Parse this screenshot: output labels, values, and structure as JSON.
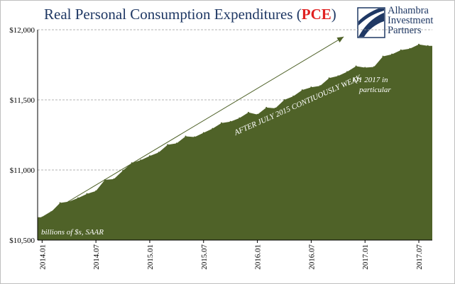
{
  "title": {
    "main": "Real Personal Consumption Expenditures (",
    "highlight": "PCE",
    "close": ")"
  },
  "logo": {
    "line1": "Alhambra",
    "line2": "Investment",
    "line3": "Partners"
  },
  "colors": {
    "area": "#4f6228",
    "title": "#1f3864",
    "highlight": "#e02020"
  },
  "chart_data": {
    "type": "area",
    "title": "Real Personal Consumption Expenditures (PCE)",
    "units_note": "billions of $s, SAAR",
    "ylim": [
      10500,
      12000
    ],
    "yticks": [
      10500,
      11000,
      11500,
      12000
    ],
    "ytick_labels": [
      "$10,500",
      "$11,000",
      "$11,500",
      "$12,000"
    ],
    "grid": "horizontal dashed",
    "xtick_labels": [
      "2014.01",
      "2014.07",
      "2015.01",
      "2015.07",
      "2016.01",
      "2016.07",
      "2017.01",
      "2017.07"
    ],
    "xtick_month_index": [
      0,
      6,
      12,
      18,
      24,
      30,
      36,
      42
    ],
    "x": [
      "2014.01",
      "2014.02",
      "2014.03",
      "2014.04",
      "2014.05",
      "2014.06",
      "2014.07",
      "2014.08",
      "2014.09",
      "2014.10",
      "2014.11",
      "2014.12",
      "2015.01",
      "2015.02",
      "2015.03",
      "2015.04",
      "2015.05",
      "2015.06",
      "2015.07",
      "2015.08",
      "2015.09",
      "2015.10",
      "2015.11",
      "2015.12",
      "2016.01",
      "2016.02",
      "2016.03",
      "2016.04",
      "2016.05",
      "2016.06",
      "2016.07",
      "2016.08",
      "2016.09",
      "2016.10",
      "2016.11",
      "2016.12",
      "2017.01",
      "2017.02",
      "2017.03",
      "2017.04",
      "2017.05",
      "2017.06",
      "2017.07",
      "2017.08"
    ],
    "series": [
      {
        "values": [
          10663,
          10700,
          10765,
          10775,
          10800,
          10830,
          10850,
          10930,
          10935,
          10995,
          11050,
          11070,
          11100,
          11125,
          11180,
          11190,
          11240,
          11235,
          11265,
          11295,
          11335,
          11345,
          11370,
          11410,
          11395,
          11445,
          11440,
          11500,
          11525,
          11570,
          11590,
          11600,
          11655,
          11670,
          11700,
          11740,
          11730,
          11735,
          11810,
          11825,
          11855,
          11865,
          11895,
          11885
        ]
      }
    ],
    "annotations": [
      {
        "text": "AFTER JULY 2015 CONTIUOUSLY WEAK",
        "type": "trend-arrow",
        "from": [
          "2014.01",
          10663
        ],
        "to": [
          "2017.01",
          11910
        ]
      },
      {
        "text": "Q1 2017 in",
        "line": 1
      },
      {
        "text": "particular",
        "line": 2
      }
    ]
  }
}
